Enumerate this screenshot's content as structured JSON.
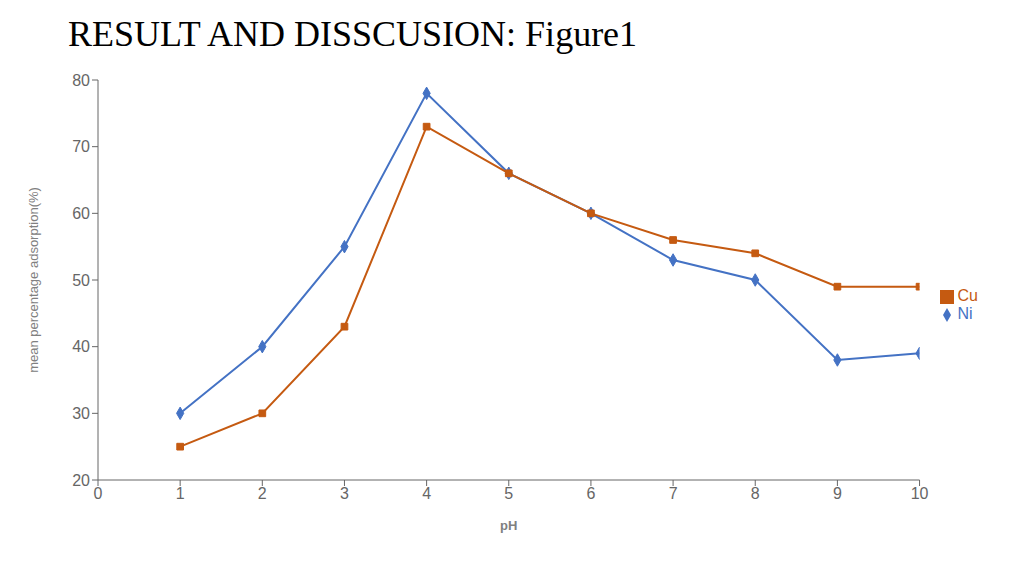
{
  "chart_data": {
    "type": "line",
    "title": "RESULT AND DISSCUSION: Figure1",
    "xlabel": "pH",
    "ylabel": "mean percentage adsorption(%)",
    "x": [
      1,
      2,
      3,
      4,
      5,
      6,
      7,
      8,
      9,
      10
    ],
    "series": [
      {
        "name": "Ni",
        "color": "#4472C4",
        "marker": "diamond",
        "values": [
          30,
          40,
          55,
          78,
          66,
          60,
          53,
          50,
          38,
          39
        ]
      },
      {
        "name": "Cu",
        "color": "#C55A11",
        "marker": "square",
        "values": [
          25,
          30,
          43,
          73,
          66,
          60,
          56,
          54,
          49,
          49
        ]
      }
    ],
    "xlim": [
      0,
      10
    ],
    "ylim": [
      20,
      80
    ],
    "xticks": [
      0,
      1,
      2,
      3,
      4,
      5,
      6,
      7,
      8,
      9,
      10
    ],
    "yticks": [
      20,
      30,
      40,
      50,
      60,
      70,
      80
    ],
    "grid": false,
    "legend": "right"
  }
}
